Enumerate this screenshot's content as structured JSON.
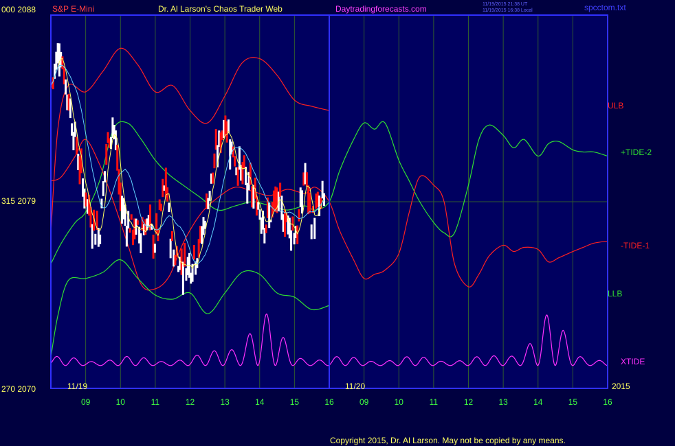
{
  "header": {
    "left_scale": "000  2088",
    "instrument": "S&P E-Mini",
    "author": "Dr. Al Larson's Chaos Trader Web",
    "site": "Daytradingforecasts.com",
    "stamp_line1": "11/19/2015 21:38 UT",
    "stamp_line2": "11/19/2015 16:38 Local",
    "file": "spcctom.txt"
  },
  "footer": {
    "copyright": "Copyright 2015, Dr. Al Larson. May not be copied by any means."
  },
  "colors": {
    "background": "#000040",
    "plot_area": "#000060",
    "frame": "#3030ff",
    "grid": "#2f5a2f",
    "ulb": "#ff2020",
    "tide_pos": "#30e030",
    "tide_neg": "#ff2020",
    "llb": "#30e030",
    "xtide": "#ff30ff",
    "price_up": "#ffffff",
    "price_down": "#ff1010",
    "ma_fast": "#ffff60",
    "ma_slow": "#60d0ff",
    "axis_text": "#ffff60",
    "time_text": "#40ff40",
    "title_text": "#ffff60",
    "instrument_text": "#ff4040",
    "site_text": "#ff40ff"
  },
  "chart_data": {
    "type": "line",
    "ylim": [
      2070,
      2088
    ],
    "y_tick_labels": [
      "000  2088",
      "315  2079",
      "270  2070"
    ],
    "date_labels": [
      "11/19",
      "11/20",
      "2015"
    ],
    "hour_labels": [
      "09",
      "10",
      "11",
      "12",
      "13",
      "14",
      "15",
      "16",
      "09",
      "10",
      "11",
      "12",
      "13",
      "14",
      "15",
      "16"
    ],
    "x_domain": [
      8.0,
      24.0
    ],
    "now_marker_x": 16.0,
    "right_labels": [
      {
        "text": "ULB",
        "color": "#ff2020"
      },
      {
        "text": "+TIDE-2",
        "color": "#30e030"
      },
      {
        "text": "-TIDE-1",
        "color": "#ff2020"
      },
      {
        "text": "LLB",
        "color": "#30e030"
      },
      {
        "text": "XTIDE",
        "color": "#ff30ff"
      }
    ],
    "series": [
      {
        "name": "ULB",
        "color": "#ff2020",
        "x": [
          8.0,
          8.2,
          8.5,
          9.0,
          9.5,
          10.0,
          10.5,
          11.0,
          11.5,
          12.0,
          12.5,
          13.0,
          13.5,
          14.0,
          14.5,
          15.0,
          15.5,
          16.0
        ],
        "y": [
          2077.5,
          2082.5,
          2084.6,
          2084.3,
          2085.3,
          2086.4,
          2085.6,
          2084.3,
          2084.6,
          2083.4,
          2082.8,
          2084.1,
          2085.7,
          2085.9,
          2085.1,
          2083.9,
          2083.6,
          2083.4
        ]
      },
      {
        "name": "+TIDE-2",
        "color": "#30e030",
        "x": [
          8.0,
          8.3,
          8.7,
          9.0,
          9.4,
          9.8,
          10.2,
          10.6,
          11.0,
          11.4,
          11.8,
          12.3,
          12.8,
          13.3,
          13.8,
          14.3,
          14.8,
          15.3,
          15.6,
          16.0,
          16.3,
          16.7,
          17.0,
          17.3,
          17.6,
          18.0,
          18.3,
          18.6,
          19.0,
          19.3,
          19.6,
          20.0,
          20.3,
          20.6,
          21.0,
          21.3,
          21.6,
          22.0,
          22.3,
          22.6,
          23.0,
          23.3,
          23.6,
          24.0
        ],
        "y": [
          2076.0,
          2077.0,
          2078.0,
          2078.5,
          2080.0,
          2082.5,
          2082.8,
          2082.0,
          2081.0,
          2080.3,
          2079.8,
          2079.2,
          2078.6,
          2078.8,
          2079.0,
          2078.8,
          2078.6,
          2078.8,
          2078.6,
          2079.0,
          2080.5,
          2082.0,
          2082.8,
          2082.5,
          2082.8,
          2081.0,
          2080.0,
          2079.0,
          2078.0,
          2077.5,
          2077.5,
          2079.8,
          2082.0,
          2082.7,
          2082.2,
          2081.6,
          2082.0,
          2081.2,
          2081.8,
          2081.9,
          2081.5,
          2081.4,
          2081.4,
          2081.2
        ]
      },
      {
        "name": "-TIDE-1",
        "color": "#ff2020",
        "x": [
          8.0,
          8.3,
          8.7,
          9.0,
          9.4,
          9.8,
          10.2,
          10.6,
          11.0,
          11.4,
          11.8,
          12.3,
          12.8,
          13.3,
          13.8,
          14.3,
          14.8,
          15.3,
          15.6,
          16.0,
          16.3,
          16.7,
          17.0,
          17.3,
          17.6,
          18.0,
          18.3,
          18.6,
          19.0,
          19.3,
          19.6,
          20.0,
          20.3,
          20.6,
          21.0,
          21.3,
          21.6,
          22.0,
          22.3,
          22.6,
          23.0,
          23.3,
          23.6,
          24.0
        ],
        "y": [
          2080.0,
          2080.2,
          2081.2,
          2082.0,
          2080.8,
          2079.0,
          2077.0,
          2075.0,
          2074.8,
          2075.4,
          2077.0,
          2078.4,
          2079.2,
          2079.7,
          2079.5,
          2079.3,
          2079.6,
          2079.4,
          2079.7,
          2079.0,
          2077.6,
          2076.2,
          2075.3,
          2075.5,
          2075.7,
          2076.5,
          2078.5,
          2080.2,
          2079.8,
          2079.0,
          2076.0,
          2074.9,
          2075.5,
          2076.4,
          2076.9,
          2076.6,
          2076.8,
          2076.7,
          2076.1,
          2076.3,
          2076.6,
          2076.8,
          2077.0,
          2077.1
        ]
      },
      {
        "name": "LLB",
        "color": "#30e030",
        "x": [
          8.0,
          8.2,
          8.5,
          9.0,
          9.5,
          10.0,
          10.5,
          11.0,
          11.5,
          12.0,
          12.5,
          13.0,
          13.5,
          14.0,
          14.5,
          15.0,
          15.5,
          16.0
        ],
        "y": [
          2071.5,
          2073.5,
          2075.2,
          2075.3,
          2075.6,
          2076.2,
          2075.3,
          2074.5,
          2074.3,
          2074.6,
          2073.6,
          2074.6,
          2075.6,
          2075.5,
          2074.6,
          2074.4,
          2073.8,
          2074.0
        ]
      },
      {
        "name": "XTIDE",
        "color": "#ff30ff",
        "x": [
          8.0,
          16.0,
          24.0
        ],
        "y": [
          2070.6,
          2070.6,
          2071.1
        ]
      }
    ],
    "price_bars": "synthetic reproduction of the S&P E-Mini intraday bars (11/19 09:00–16:00)"
  }
}
